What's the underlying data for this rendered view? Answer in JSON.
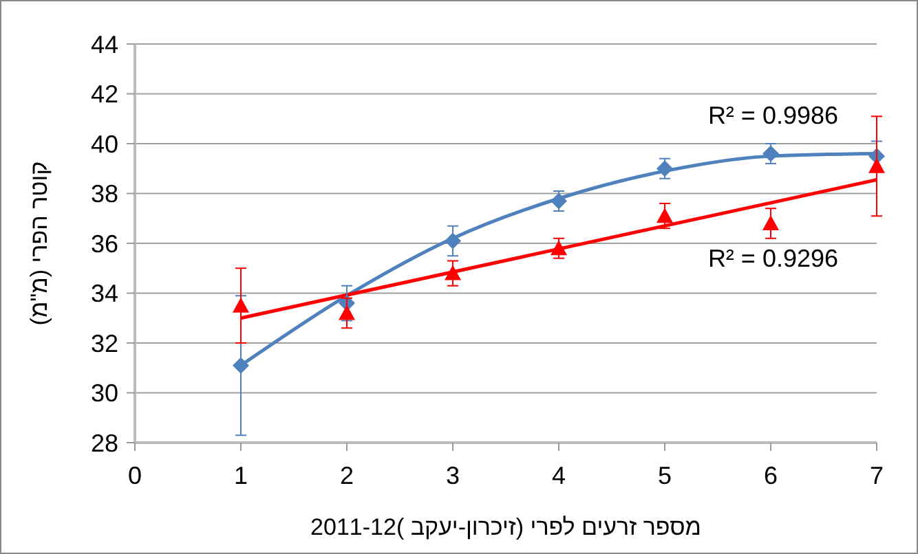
{
  "chart_data": {
    "type": "scatter",
    "xlabel": "מספר זרעים לפרי (זיכרון-יעקב )2011-12",
    "ylabel": "קוטר הפרי (מ\"מ)",
    "x": [
      1,
      2,
      3,
      4,
      5,
      6,
      7
    ],
    "series": [
      {
        "color": "#4f81bd",
        "marker": "diamond",
        "values": [
          31.1,
          33.6,
          36.1,
          37.7,
          39.0,
          39.6,
          39.5
        ],
        "errors": [
          2.8,
          0.7,
          0.6,
          0.4,
          0.4,
          0.4,
          0.6
        ]
      },
      {
        "color": "#ff0000",
        "marker": "triangle",
        "values": [
          33.5,
          33.2,
          34.8,
          35.8,
          37.1,
          36.8,
          39.1
        ],
        "errors": [
          1.5,
          0.6,
          0.5,
          0.4,
          0.5,
          0.6,
          2.0
        ]
      },
      {
        "type": "line",
        "color": "#4f81bd",
        "x": [
          1,
          2,
          3,
          4,
          5,
          6,
          7
        ],
        "values": [
          31.1,
          33.9,
          36.2,
          37.8,
          38.9,
          39.5,
          39.6
        ]
      },
      {
        "type": "line",
        "color": "#ff0000",
        "x": [
          1,
          7
        ],
        "values": [
          33.0,
          38.55
        ]
      }
    ],
    "annotations": [
      "R² = 0.9986",
      "R² = 0.9296"
    ],
    "xlim": [
      0,
      7
    ],
    "xticks": [
      0,
      1,
      2,
      3,
      4,
      5,
      6,
      7
    ],
    "ylim": [
      28,
      44
    ],
    "yticks": [
      28,
      30,
      32,
      34,
      36,
      38,
      40,
      42,
      44
    ],
    "grid": "y"
  }
}
